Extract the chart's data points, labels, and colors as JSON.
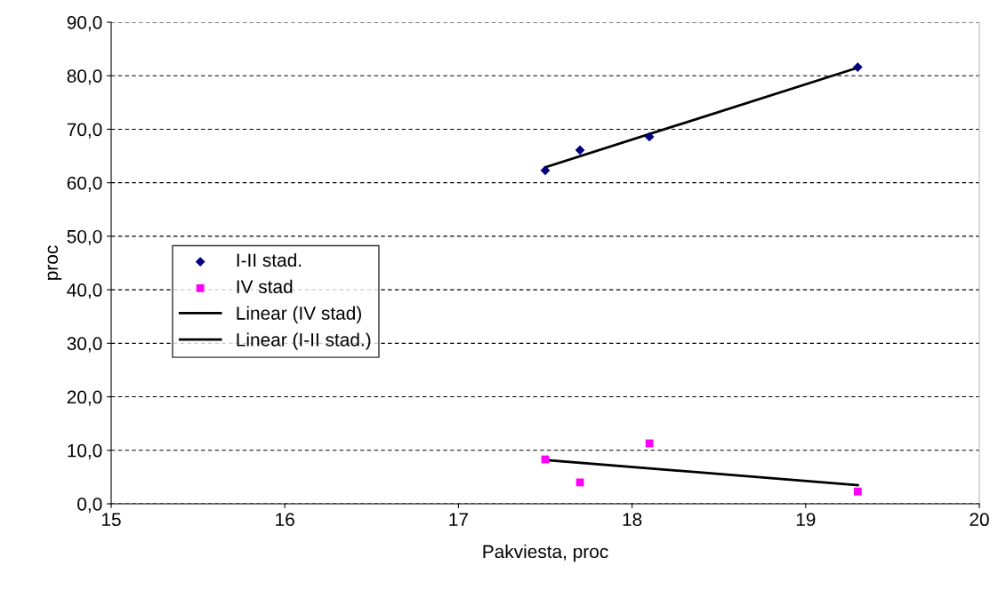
{
  "chart_data": {
    "type": "scatter",
    "xlabel": "Pakviesta, proc",
    "ylabel": "proc",
    "xlim": [
      15,
      20
    ],
    "xticks": [
      15,
      16,
      17,
      18,
      19,
      20
    ],
    "ylim": [
      0,
      90
    ],
    "yticks": [
      {
        "value": 0,
        "label": "0,0"
      },
      {
        "value": 10,
        "label": "10,0"
      },
      {
        "value": 20,
        "label": "20,0"
      },
      {
        "value": 30,
        "label": "30,0"
      },
      {
        "value": 40,
        "label": "40,0"
      },
      {
        "value": 50,
        "label": "50,0"
      },
      {
        "value": 60,
        "label": "60,0"
      },
      {
        "value": 70,
        "label": "70,0"
      },
      {
        "value": 80,
        "label": "80,0"
      },
      {
        "value": 90,
        "label": "90,0"
      }
    ],
    "grid": "y",
    "legend": "left",
    "series": [
      {
        "name": "I-II stad.",
        "marker": "diamond",
        "color": "#000080",
        "x": [
          17.5,
          17.7,
          18.1,
          19.3
        ],
        "values": [
          62.3,
          66.1,
          68.6,
          81.6
        ]
      },
      {
        "name": "IV stad",
        "marker": "square",
        "color": "#ff00ff",
        "x": [
          17.5,
          17.7,
          18.1,
          19.3
        ],
        "values": [
          8.3,
          4.0,
          11.3,
          2.3
        ]
      },
      {
        "name": "Linear (IV stad)",
        "type": "line",
        "marker": "none",
        "line_style": "solid",
        "color": "#000000",
        "x": [
          17.5,
          19.3
        ],
        "values": [
          8.2,
          3.5
        ]
      },
      {
        "name": "Linear (I-II stad.)",
        "type": "line",
        "marker": "none",
        "line_style": "solid",
        "color": "#000000",
        "x": [
          17.5,
          19.3
        ],
        "values": [
          62.9,
          81.5
        ]
      }
    ]
  }
}
